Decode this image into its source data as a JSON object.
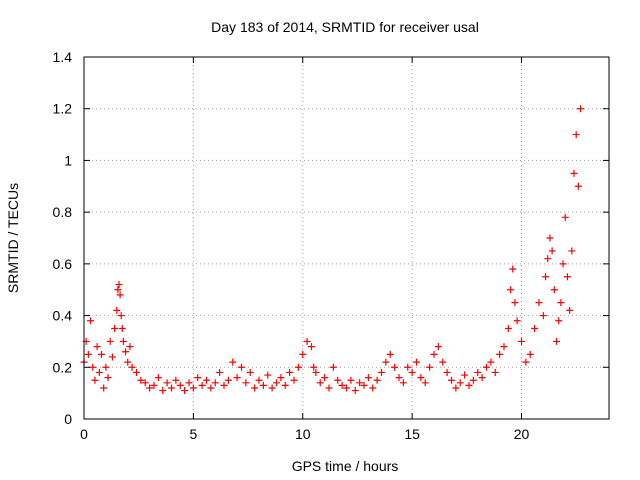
{
  "chart_data": {
    "type": "scatter",
    "title": "Day 183 of 2014, SRMTID for receiver usal",
    "xlabel": "GPS time / hours",
    "ylabel": "SRMTID / TECUs",
    "xlim": [
      0,
      24
    ],
    "ylim": [
      0,
      1.4
    ],
    "xticks": [
      0,
      5,
      10,
      15,
      20
    ],
    "xtick_labels": [
      "0",
      "5",
      "10",
      "15",
      "20"
    ],
    "yticks": [
      0,
      0.2,
      0.4,
      0.6,
      0.8,
      1.0,
      1.2,
      1.4
    ],
    "ytick_labels": [
      "0",
      "0.2",
      "0.4",
      "0.6",
      "0.8",
      "1",
      "1.2",
      "1.4"
    ],
    "grid": true,
    "marker": "+",
    "series": [
      {
        "name": "SRMTID",
        "color": "#ff0000",
        "x": [
          0.0,
          0.1,
          0.2,
          0.3,
          0.4,
          0.5,
          0.6,
          0.7,
          0.8,
          0.9,
          1.0,
          1.1,
          1.2,
          1.3,
          1.4,
          1.5,
          1.55,
          1.6,
          1.65,
          1.7,
          1.75,
          1.8,
          1.9,
          2.0,
          2.1,
          2.2,
          2.4,
          2.6,
          2.8,
          3.0,
          3.2,
          3.4,
          3.6,
          3.8,
          4.0,
          4.2,
          4.4,
          4.6,
          4.8,
          5.0,
          5.2,
          5.4,
          5.6,
          5.8,
          6.0,
          6.2,
          6.4,
          6.6,
          6.8,
          7.0,
          7.2,
          7.4,
          7.6,
          7.8,
          8.0,
          8.2,
          8.4,
          8.6,
          8.8,
          9.0,
          9.2,
          9.4,
          9.6,
          9.8,
          10.0,
          10.2,
          10.4,
          10.5,
          10.6,
          10.8,
          11.0,
          11.2,
          11.4,
          11.6,
          11.8,
          12.0,
          12.2,
          12.4,
          12.6,
          12.8,
          13.0,
          13.2,
          13.4,
          13.6,
          13.8,
          14.0,
          14.2,
          14.4,
          14.6,
          14.8,
          15.0,
          15.2,
          15.4,
          15.6,
          15.8,
          16.0,
          16.2,
          16.4,
          16.6,
          16.8,
          17.0,
          17.2,
          17.4,
          17.6,
          17.8,
          18.0,
          18.2,
          18.4,
          18.6,
          18.8,
          19.0,
          19.2,
          19.4,
          19.5,
          19.6,
          19.7,
          19.8,
          20.0,
          20.2,
          20.4,
          20.6,
          20.8,
          21.0,
          21.1,
          21.2,
          21.3,
          21.4,
          21.5,
          21.6,
          21.7,
          21.8,
          21.9,
          22.0,
          22.1,
          22.2,
          22.3,
          22.4,
          22.5,
          22.6,
          22.7
        ],
        "y": [
          0.22,
          0.3,
          0.25,
          0.38,
          0.2,
          0.15,
          0.28,
          0.18,
          0.25,
          0.12,
          0.2,
          0.16,
          0.3,
          0.24,
          0.35,
          0.42,
          0.5,
          0.52,
          0.48,
          0.4,
          0.35,
          0.3,
          0.26,
          0.22,
          0.28,
          0.2,
          0.18,
          0.15,
          0.14,
          0.12,
          0.13,
          0.16,
          0.11,
          0.14,
          0.12,
          0.15,
          0.13,
          0.11,
          0.14,
          0.12,
          0.16,
          0.13,
          0.15,
          0.12,
          0.14,
          0.18,
          0.13,
          0.15,
          0.22,
          0.16,
          0.2,
          0.14,
          0.18,
          0.12,
          0.15,
          0.13,
          0.17,
          0.12,
          0.14,
          0.16,
          0.13,
          0.18,
          0.15,
          0.2,
          0.25,
          0.3,
          0.28,
          0.2,
          0.18,
          0.14,
          0.16,
          0.12,
          0.2,
          0.15,
          0.13,
          0.12,
          0.15,
          0.11,
          0.14,
          0.13,
          0.16,
          0.12,
          0.15,
          0.18,
          0.22,
          0.25,
          0.2,
          0.16,
          0.14,
          0.2,
          0.18,
          0.22,
          0.16,
          0.14,
          0.2,
          0.25,
          0.28,
          0.22,
          0.18,
          0.15,
          0.12,
          0.14,
          0.17,
          0.13,
          0.15,
          0.18,
          0.16,
          0.2,
          0.22,
          0.18,
          0.25,
          0.28,
          0.35,
          0.5,
          0.58,
          0.45,
          0.38,
          0.3,
          0.22,
          0.25,
          0.35,
          0.45,
          0.4,
          0.55,
          0.62,
          0.7,
          0.65,
          0.5,
          0.3,
          0.38,
          0.45,
          0.6,
          0.78,
          0.55,
          0.42,
          0.65,
          0.95,
          1.1,
          0.9,
          1.2
        ]
      }
    ]
  }
}
